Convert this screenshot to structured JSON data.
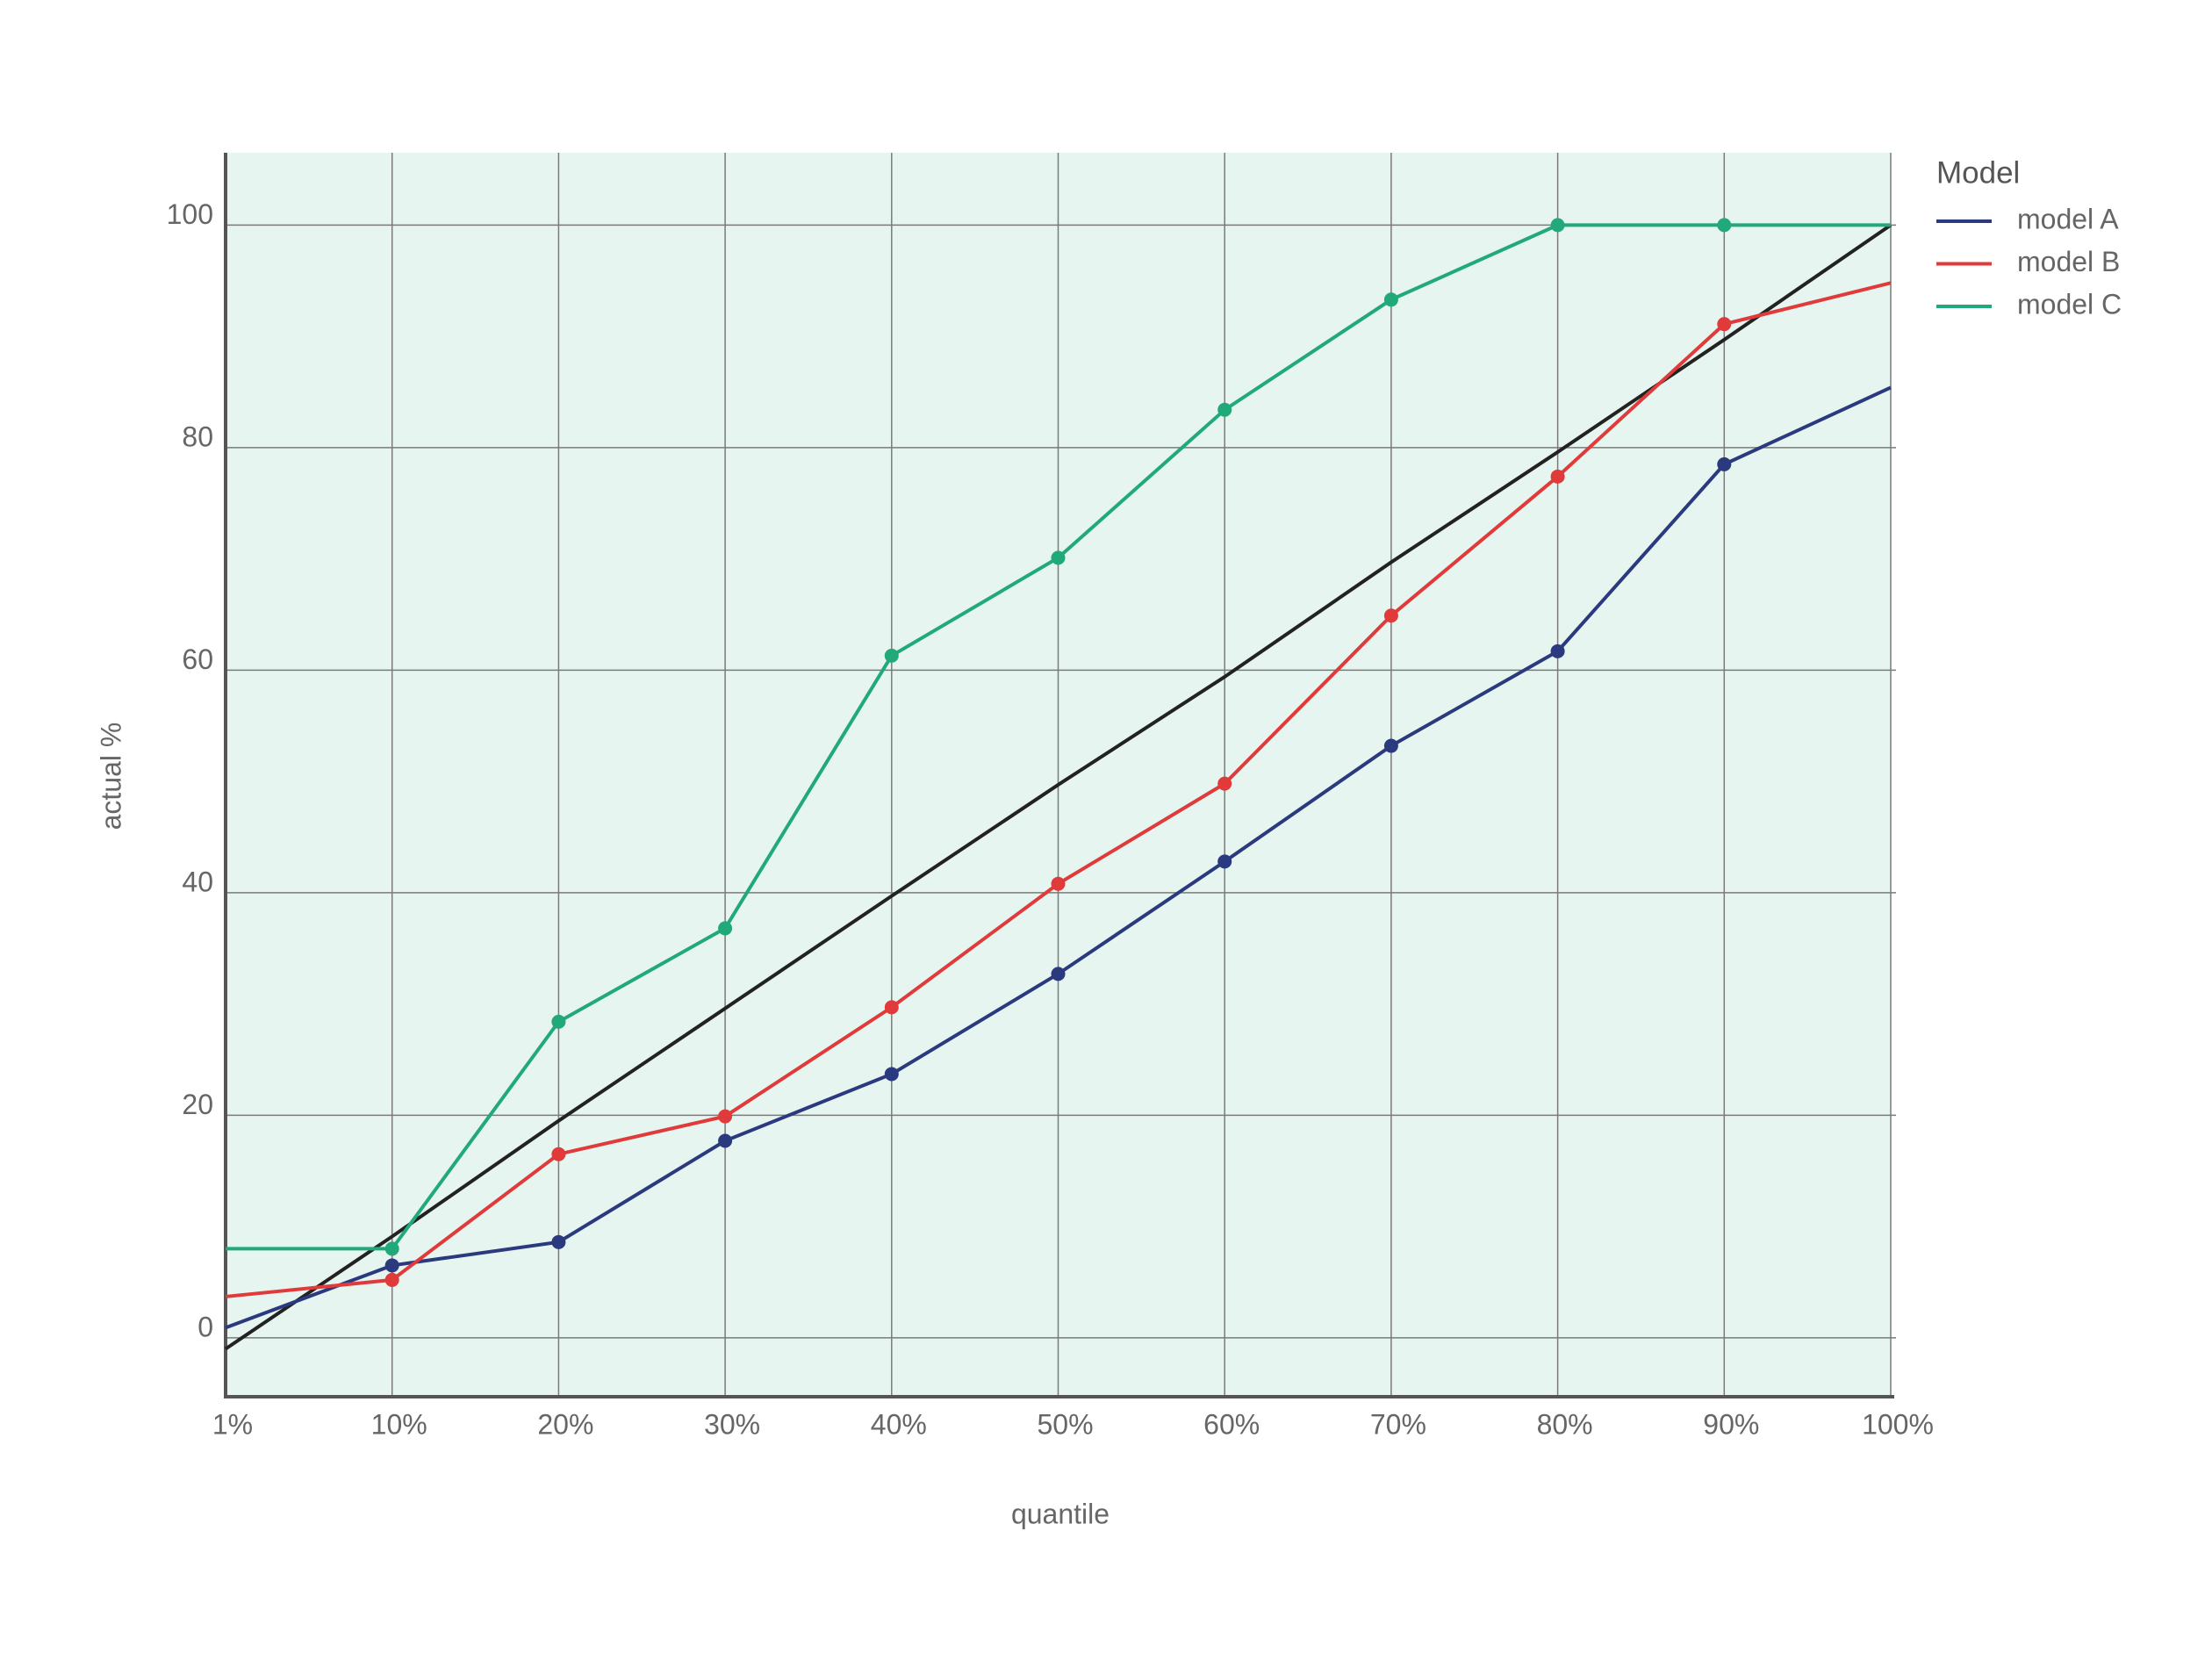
{
  "chart_data": {
    "type": "line",
    "x_label": "quantile",
    "y_label": "actual %",
    "categories": [
      "1%",
      "10%",
      "20%",
      "30%",
      "40%",
      "50%",
      "60%",
      "70%",
      "80%",
      "90%",
      "100%"
    ],
    "series": [
      {
        "name": "model A",
        "color": "#2b3a7e",
        "values": [
          0.9,
          6.5,
          8.6,
          17.7,
          23.7,
          32.7,
          42.8,
          53.2,
          61.7,
          78.5,
          85.4
        ]
      },
      {
        "name": "model B",
        "color": "#e03a3a",
        "values": [
          3.7,
          5.2,
          16.5,
          19.9,
          29.7,
          40.8,
          49.8,
          64.9,
          77.4,
          91.1,
          94.8
        ]
      },
      {
        "name": "model C",
        "color": "#22a97a",
        "values": [
          8.0,
          8.0,
          28.4,
          36.8,
          61.3,
          70.1,
          83.4,
          93.3,
          100,
          100,
          100
        ]
      }
    ],
    "reference_line": {
      "color": "#222222",
      "values": [
        -1,
        9.1,
        19.5,
        29.6,
        39.7,
        49.7,
        59.4,
        69.7,
        79.6,
        89.7,
        100
      ]
    },
    "ylim": [
      -5.3,
      106.5
    ],
    "yticks": [
      0,
      20,
      40,
      60,
      80,
      100
    ],
    "grid": true,
    "legend_title": "Model",
    "legend_position": "right",
    "background": "#e6f5ef"
  }
}
